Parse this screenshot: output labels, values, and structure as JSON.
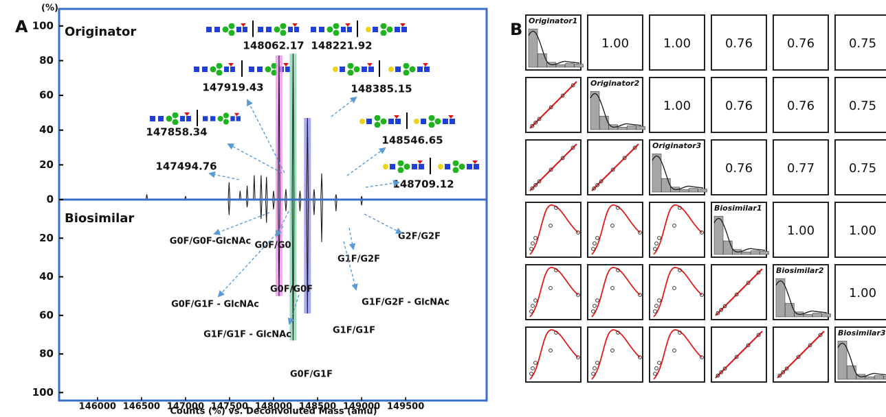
{
  "panel_labels": [
    "A",
    "B"
  ],
  "chart_data": [
    {
      "type": "mirror-spectrum",
      "y_unit": "(%)",
      "x_label": "Counts (%) vs. Deconvoluted Mass (amu)",
      "xlim": [
        145580,
        150420
      ],
      "xticks": [
        146000,
        146500,
        147000,
        147500,
        148000,
        148500,
        149000,
        149500
      ],
      "ylim": [
        0,
        109
      ],
      "yticks": [
        0,
        20,
        40,
        60,
        80,
        100
      ],
      "y2lim": [
        0,
        102
      ],
      "y2ticks": [
        20,
        40,
        60,
        80,
        100
      ],
      "y2_inverted": true,
      "series": [
        {
          "name": "Originator",
          "color": "#1a1a1a",
          "x": [
            145600,
            146550,
            146560,
            146570,
            146990,
            147000,
            147010,
            147484.76,
            147494.76,
            147504.76,
            147610,
            147620,
            147630,
            147690,
            147700,
            147710,
            147770,
            147780,
            147790,
            147848.34,
            147858.34,
            147868.34,
            147909.43,
            147919.43,
            147929.43,
            147990,
            148000,
            148010,
            148052.17,
            148062.17,
            148072.17,
            148130,
            148140,
            148150,
            148211.92,
            148221.92,
            148231.92,
            148290,
            148300,
            148310,
            148375.15,
            148385.15,
            148395.15,
            148450,
            148460,
            148470,
            148536.65,
            148546.65,
            148556.65,
            148699.12,
            148709.12,
            148719.12,
            148990,
            149000,
            149010,
            150400
          ],
          "values": [
            0,
            0,
            3,
            0,
            0,
            2,
            0,
            0,
            10,
            0,
            0,
            5,
            0,
            0,
            8,
            0,
            0,
            14,
            0,
            0,
            14,
            0,
            0,
            13,
            0,
            0,
            5,
            0,
            0,
            83,
            0,
            0,
            6,
            0,
            0,
            84,
            0,
            0,
            5,
            0,
            0,
            47,
            0,
            0,
            6,
            0,
            0,
            15,
            0,
            0,
            3,
            0,
            0,
            2,
            0,
            0
          ]
        },
        {
          "name": "Biosimilar",
          "color": "#1a1a1a",
          "axis": "y2",
          "x": [
            145600,
            147484.76,
            147494.76,
            147504.76,
            147690,
            147700,
            147710,
            147848.34,
            147858.34,
            147868.34,
            147909.43,
            147919.43,
            147929.43,
            147990,
            148000,
            148010,
            148052.17,
            148062.17,
            148072.17,
            148130,
            148140,
            148150,
            148211.92,
            148221.92,
            148231.92,
            148290,
            148300,
            148310,
            148375.15,
            148385.15,
            148395.15,
            148450,
            148460,
            148470,
            148536.65,
            148546.65,
            148556.65,
            148699.12,
            148709.12,
            148719.12,
            148990,
            149000,
            149010,
            150400
          ],
          "values": [
            0,
            0,
            8,
            0,
            0,
            4,
            0,
            0,
            10,
            0,
            0,
            12,
            0,
            0,
            5,
            0,
            0,
            50,
            0,
            0,
            6,
            0,
            0,
            73,
            0,
            0,
            6,
            0,
            0,
            59,
            0,
            0,
            8,
            0,
            0,
            22,
            0,
            0,
            6,
            0,
            0,
            3,
            0,
            0
          ]
        }
      ],
      "highlights": [
        {
          "x": 148062.17,
          "color": "#f08cf0"
        },
        {
          "x": 148221.92,
          "color": "#7fd6a8"
        },
        {
          "x": 148385.15,
          "color": "#8f8cf0"
        }
      ],
      "mass_labels": [
        147494.76,
        147858.34,
        147919.43,
        148062.17,
        148221.92,
        148385.15,
        148546.65,
        148709.12
      ],
      "glycoform_labels": [
        "G0F/G0F-GlcNAc",
        "G0F/G0",
        "G1F/G2F",
        "G2F/G2F",
        "G0F/G1F - GlcNAc",
        "G0F/G0F",
        "G1F/G2F - GlcNAc",
        "G1F/G1F - GlcNAc",
        "G1F/G1F",
        "G0F/G1F"
      ]
    },
    {
      "type": "correlation-matrix",
      "variables": [
        "Originator1",
        "Originator2",
        "Originator3",
        "Biosimilar1",
        "Biosimilar2",
        "Biosimilar3"
      ],
      "values": [
        [
          1,
          1,
          0.76,
          0.76,
          0.75
        ],
        [
          1,
          0.76,
          0.76,
          0.75
        ],
        [
          0.76,
          0.77,
          0.75
        ],
        [
          1,
          1
        ],
        [
          1
        ]
      ],
      "value_labels": [
        [
          "1.00",
          "1.00",
          "0.76",
          "0.76",
          "0.75"
        ],
        [
          "1.00",
          "0.76",
          "0.76",
          "0.75"
        ],
        [
          "0.76",
          "0.77",
          "0.75"
        ],
        [
          "1.00",
          "1.00"
        ],
        [
          "1.00"
        ]
      ]
    }
  ]
}
